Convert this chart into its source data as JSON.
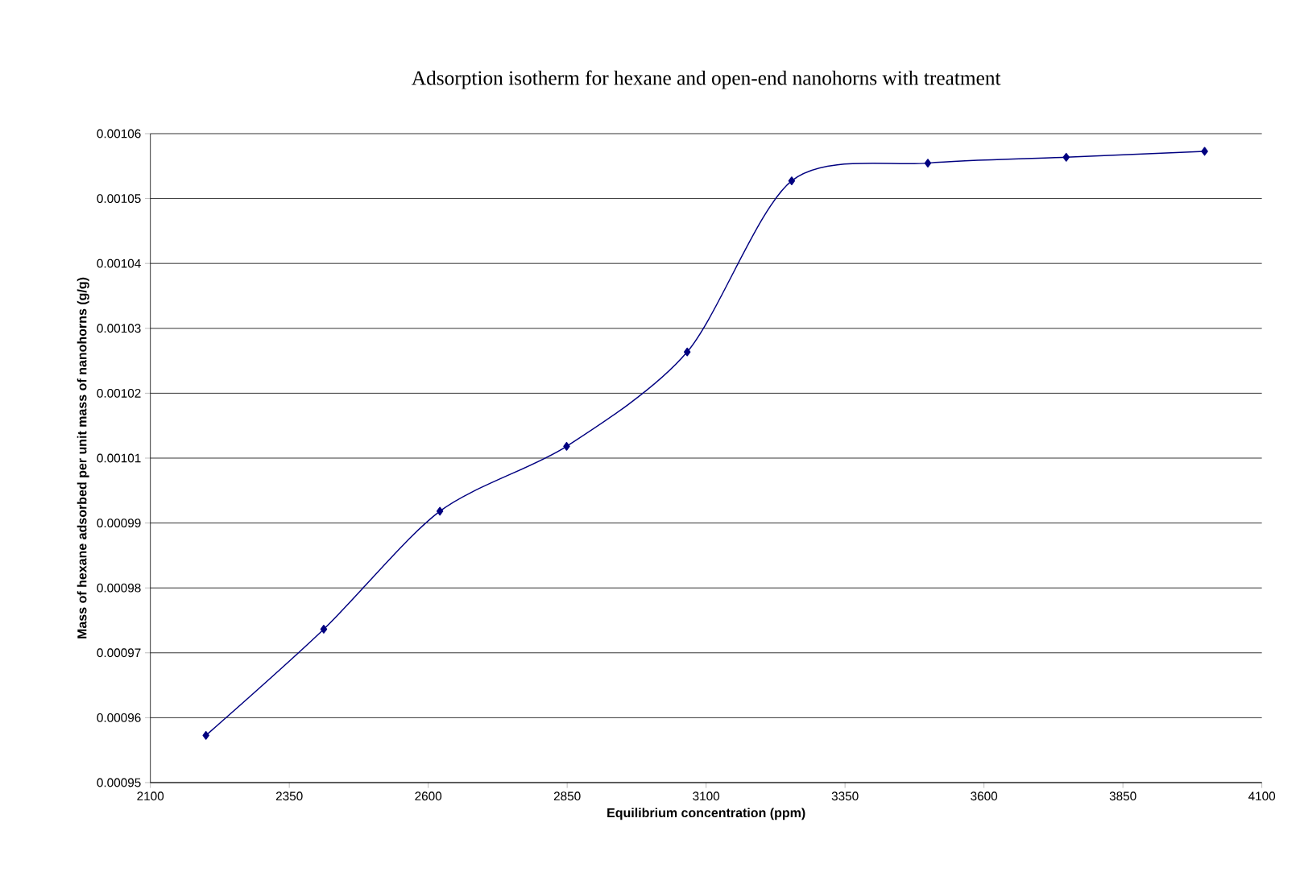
{
  "chart_data": {
    "type": "line",
    "title": "Adsorption isotherm for hexane and open-end nanohorns with treatment",
    "xlabel": "Equilibrium concentration (ppm)",
    "ylabel": "Mass of hexane adsorbed per unit mass of nanohorns (g/g)",
    "x": [
      2200,
      2412,
      2621,
      2849,
      3066,
      3254,
      3499,
      3748,
      3997
    ],
    "values": [
      0.000958,
      0.000976,
      0.000996,
      0.001007,
      0.001023,
      0.001052,
      0.001055,
      0.001056,
      0.001057
    ],
    "color": "#000080",
    "marker": "diamond",
    "line_style": "solid",
    "grid": "y",
    "xlim": [
      2100,
      4100
    ],
    "xticks": [
      2100,
      2350,
      2600,
      2850,
      3100,
      3350,
      3600,
      3850,
      4100
    ],
    "ylim": [
      0.00095,
      0.00106
    ],
    "yticks": [
      {
        "value": 0.00095,
        "label": "0.00095"
      },
      {
        "value": 0.000961,
        "label": "0.00096"
      },
      {
        "value": 0.000972,
        "label": "0.00097"
      },
      {
        "value": 0.000983,
        "label": "0.00098"
      },
      {
        "value": 0.000994,
        "label": "0.00099"
      },
      {
        "value": 0.001005,
        "label": "0.00101"
      },
      {
        "value": 0.001016,
        "label": "0.00102"
      },
      {
        "value": 0.001027,
        "label": "0.00103"
      },
      {
        "value": 0.001038,
        "label": "0.00104"
      },
      {
        "value": 0.001049,
        "label": "0.00105"
      },
      {
        "value": 0.00106,
        "label": "0.00106"
      }
    ]
  }
}
